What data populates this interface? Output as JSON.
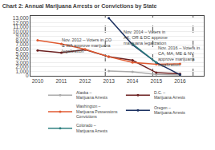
{
  "chart_data": {
    "type": "line",
    "title": "Chart 2: Annual Marijuana Arrests or Convictions by State",
    "x": [
      2010,
      2011,
      2012,
      2013,
      2014,
      2015,
      2016
    ],
    "series": [
      {
        "name": "Alaska –\nMarijuana Arrests",
        "color": "#aaaaaa",
        "values": [
          null,
          null,
          null,
          1100,
          900,
          300,
          200
        ]
      },
      {
        "name": "D.C. –\nMarijuana Arrests",
        "color": "#6b2020",
        "values": [
          5700,
          5200,
          5900,
          4300,
          3500,
          700,
          450
        ]
      },
      {
        "name": "Washington –\nMarijuana Possessions\nConvictions",
        "color": "#e05a30",
        "values": [
          8000,
          7200,
          6000,
          4300,
          3000,
          2600,
          2700
        ]
      },
      {
        "name": "Oregon –\nMarijuana Arrests",
        "color": "#1a3060",
        "values": [
          null,
          null,
          null,
          13000,
          7000,
          3000,
          250
        ]
      },
      {
        "name": "Colorado –\nMarijuana Arrests",
        "color": "#2e8080",
        "values": [
          null,
          null,
          null,
          null,
          7200,
          3000,
          null
        ]
      }
    ],
    "vlines": [
      2012.85,
      2014.85,
      2016.55
    ],
    "annotations": [
      {
        "text": "Nov. 2012 – Voters in CO\n& WA approve marijuana\nlegalization",
        "x": 2011.0,
        "y": 8800
      },
      {
        "text": "Nov. 2014 – Voters in\nAK, OR & DC approve\nmarijuana legalization",
        "x": 2013.6,
        "y": 10600
      },
      {
        "text": "Nov. 2016 – Voters in\nCA, MA, ME & NV\napprove marijuana\nlegalization",
        "x": 2015.05,
        "y": 7000
      }
    ],
    "xlim": [
      2009.7,
      2017.0
    ],
    "xticks": [
      2010,
      2011,
      2012,
      2013,
      2014,
      2015,
      2016
    ],
    "ylim": [
      0,
      13500
    ],
    "yticks": [
      0,
      {
        "value": 1000,
        "label": "1,000"
      },
      {
        "value": 2000,
        "label": "2,000"
      },
      {
        "value": 3000,
        "label": "3,000"
      },
      {
        "value": 4000,
        "label": "4,000"
      },
      {
        "value": 5000,
        "label": "5,000"
      },
      {
        "value": 6000,
        "label": "6,000"
      },
      {
        "value": 7000,
        "label": "7,000"
      },
      {
        "value": 8000,
        "label": "8,000"
      },
      {
        "value": 9000,
        "label": "9,000"
      },
      {
        "value": 10000,
        "label": "10,000"
      },
      {
        "value": 11000,
        "label": "11,000"
      },
      {
        "value": 12000,
        "label": "12,000"
      },
      {
        "value": 13000,
        "label": "13,000"
      }
    ],
    "grid": "y",
    "legend": "bottom",
    "marker": "circle"
  }
}
